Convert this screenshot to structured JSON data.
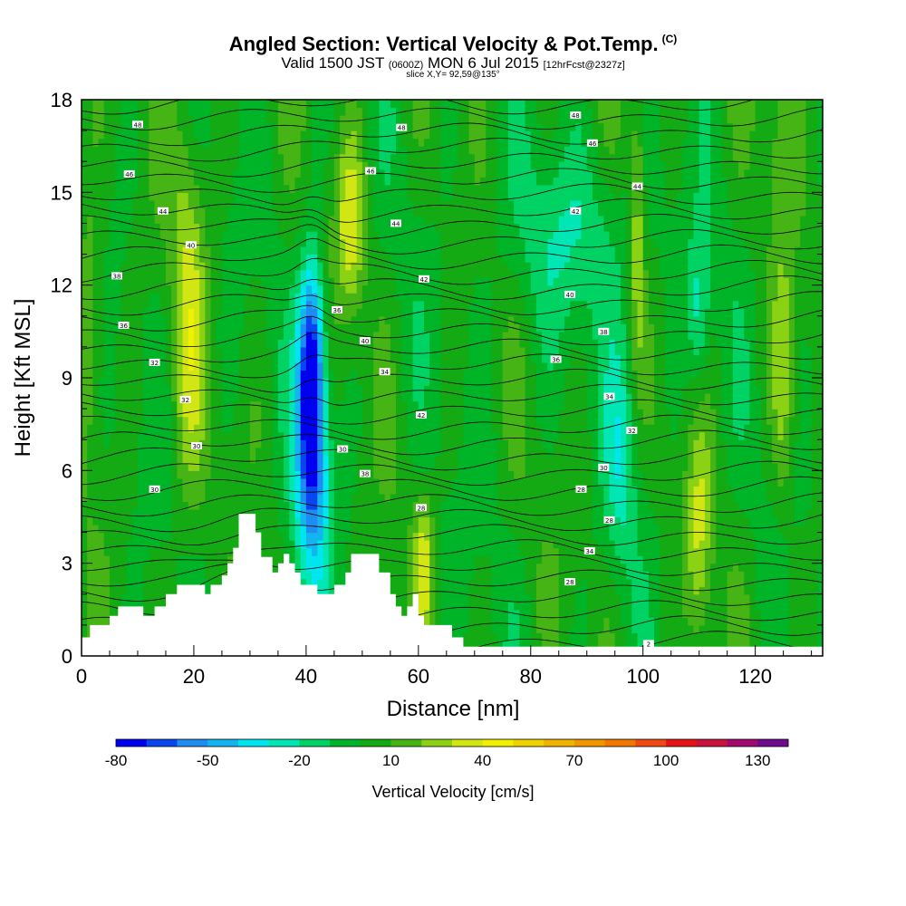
{
  "header": {
    "title": "Angled Section: Vertical Velocity & Pot.Temp.",
    "title_unit": "(C)",
    "valid_prefix": "Valid 1500 JST",
    "valid_z": "(0600Z)",
    "valid_date": "MON 6 Jul 2015",
    "forecast": "[12hrFcst@2327z]",
    "slice": "slice X,Y= 92,59@135°"
  },
  "chart_data": {
    "type": "heatmap",
    "xlabel": "Distance [nm]",
    "ylabel": "Height [Kft MSL]",
    "xlim": [
      0,
      132
    ],
    "ylim": [
      0,
      18
    ],
    "x_ticks": [
      0,
      20,
      40,
      60,
      80,
      100,
      120
    ],
    "y_ticks": [
      0,
      3,
      6,
      9,
      12,
      15,
      18
    ],
    "colorbar": {
      "label": "Vertical Velocity [cm/s]",
      "tick_labels": [
        "-80",
        "-50",
        "-20",
        "10",
        "40",
        "70",
        "100",
        "130"
      ],
      "range": [
        -80,
        140
      ],
      "step": 10,
      "colors": [
        "#0000f0",
        "#0a46f0",
        "#1e8cf0",
        "#14b4f0",
        "#00e6f0",
        "#00e6b4",
        "#00d264",
        "#00b428",
        "#14aa14",
        "#46b414",
        "#8cd214",
        "#d2e614",
        "#f0f000",
        "#f0d200",
        "#f0b400",
        "#f09600",
        "#f07800",
        "#f04a14",
        "#e61414",
        "#c8143c",
        "#a00a6e",
        "#6e0a8c"
      ]
    },
    "theta_labels": [
      {
        "x": 10,
        "y": 17.2,
        "text": "48"
      },
      {
        "x": 8.5,
        "y": 15.6,
        "text": "46"
      },
      {
        "x": 14.5,
        "y": 14.4,
        "text": "44"
      },
      {
        "x": 19.5,
        "y": 13.3,
        "text": "40"
      },
      {
        "x": 6.3,
        "y": 12.3,
        "text": "38"
      },
      {
        "x": 7.5,
        "y": 10.7,
        "text": "36"
      },
      {
        "x": 13,
        "y": 9.5,
        "text": "32"
      },
      {
        "x": 18.5,
        "y": 8.3,
        "text": "32"
      },
      {
        "x": 20.5,
        "y": 6.8,
        "text": "30"
      },
      {
        "x": 13,
        "y": 5.4,
        "text": "30"
      },
      {
        "x": 57,
        "y": 17.1,
        "text": "48"
      },
      {
        "x": 51.5,
        "y": 15.7,
        "text": "46"
      },
      {
        "x": 56,
        "y": 14.0,
        "text": "44"
      },
      {
        "x": 61,
        "y": 12.2,
        "text": "42"
      },
      {
        "x": 45.5,
        "y": 11.2,
        "text": "36"
      },
      {
        "x": 50.5,
        "y": 10.2,
        "text": "40"
      },
      {
        "x": 54,
        "y": 9.2,
        "text": "34"
      },
      {
        "x": 60.5,
        "y": 7.8,
        "text": "42"
      },
      {
        "x": 46.5,
        "y": 6.7,
        "text": "30"
      },
      {
        "x": 50.5,
        "y": 5.9,
        "text": "38"
      },
      {
        "x": 60.5,
        "y": 4.8,
        "text": "28"
      },
      {
        "x": 88,
        "y": 17.5,
        "text": "48"
      },
      {
        "x": 91,
        "y": 16.6,
        "text": "46"
      },
      {
        "x": 99,
        "y": 15.2,
        "text": "44"
      },
      {
        "x": 88,
        "y": 14.4,
        "text": "42"
      },
      {
        "x": 87,
        "y": 11.7,
        "text": "40"
      },
      {
        "x": 93,
        "y": 10.5,
        "text": "38"
      },
      {
        "x": 84.5,
        "y": 9.6,
        "text": "36"
      },
      {
        "x": 94,
        "y": 8.4,
        "text": "34"
      },
      {
        "x": 98,
        "y": 7.3,
        "text": "32"
      },
      {
        "x": 93,
        "y": 6.1,
        "text": "30"
      },
      {
        "x": 89,
        "y": 5.4,
        "text": "28"
      },
      {
        "x": 94,
        "y": 4.4,
        "text": "28"
      },
      {
        "x": 90.5,
        "y": 3.4,
        "text": "34"
      },
      {
        "x": 87,
        "y": 2.4,
        "text": "28"
      },
      {
        "x": 101,
        "y": 0.4,
        "text": "2"
      }
    ]
  }
}
